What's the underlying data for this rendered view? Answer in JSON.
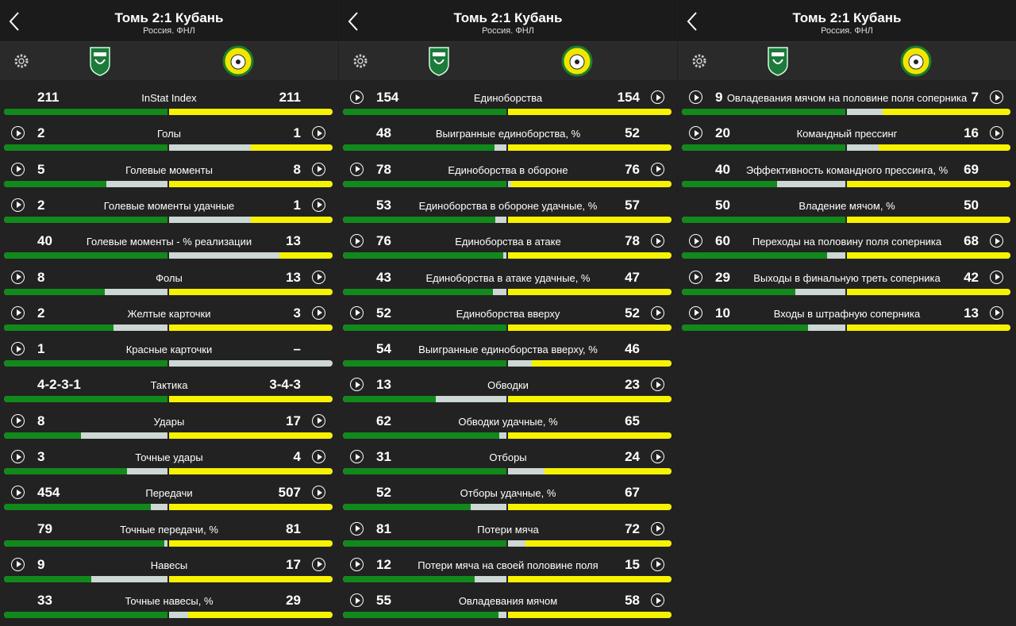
{
  "panels": [
    {
      "header": {
        "title": "Томь 2:1 Кубань",
        "subtitle": "Россия. ФНЛ"
      },
      "rows": [
        {
          "home": 211,
          "label": "InStat Index",
          "away": 211,
          "video": [
            false,
            false
          ]
        },
        {
          "home": 2,
          "label": "Голы",
          "away": 1,
          "video": [
            true,
            true
          ]
        },
        {
          "home": 5,
          "label": "Голевые моменты",
          "away": 8,
          "video": [
            true,
            true
          ]
        },
        {
          "home": 2,
          "label": "Голевые моменты удачные",
          "away": 1,
          "video": [
            true,
            true
          ]
        },
        {
          "home": 40,
          "label": "Голевые моменты - % реализации",
          "away": 13,
          "video": [
            false,
            false
          ]
        },
        {
          "home": 8,
          "label": "Фолы",
          "away": 13,
          "video": [
            true,
            true
          ]
        },
        {
          "home": 2,
          "label": "Желтые карточки",
          "away": 3,
          "video": [
            true,
            true
          ]
        },
        {
          "home": 1,
          "label": "Красные карточки",
          "away": "–",
          "video": [
            true,
            false
          ]
        },
        {
          "home": "4-2-3-1",
          "label": "Тактика",
          "away": "3-4-3",
          "video": [
            false,
            false
          ]
        },
        {
          "home": 8,
          "label": "Удары",
          "away": 17,
          "video": [
            true,
            true
          ]
        },
        {
          "home": 3,
          "label": "Точные удары",
          "away": 4,
          "video": [
            true,
            true
          ]
        },
        {
          "home": 454,
          "label": "Передачи",
          "away": 507,
          "video": [
            true,
            true
          ]
        },
        {
          "home": 79,
          "label": "Точные передачи, %",
          "away": 81,
          "video": [
            false,
            false
          ]
        },
        {
          "home": 9,
          "label": "Навесы",
          "away": 17,
          "video": [
            true,
            true
          ]
        },
        {
          "home": 33,
          "label": "Точные навесы, %",
          "away": 29,
          "video": [
            false,
            false
          ]
        }
      ]
    },
    {
      "header": {
        "title": "Томь 2:1 Кубань",
        "subtitle": "Россия. ФНЛ"
      },
      "rows": [
        {
          "home": 154,
          "label": "Единоборства",
          "away": 154,
          "video": [
            true,
            true
          ]
        },
        {
          "home": 48,
          "label": "Выигранные единоборства, %",
          "away": 52,
          "video": [
            false,
            false
          ]
        },
        {
          "home": 78,
          "label": "Единоборства в обороне",
          "away": 76,
          "video": [
            true,
            true
          ]
        },
        {
          "home": 53,
          "label": "Единоборства в обороне удачные, %",
          "away": 57,
          "video": [
            false,
            false
          ]
        },
        {
          "home": 76,
          "label": "Единоборства в атаке",
          "away": 78,
          "video": [
            true,
            true
          ]
        },
        {
          "home": 43,
          "label": "Единоборства в атаке удачные, %",
          "away": 47,
          "video": [
            false,
            false
          ]
        },
        {
          "home": 52,
          "label": "Единоборства вверху",
          "away": 52,
          "video": [
            true,
            true
          ]
        },
        {
          "home": 54,
          "label": "Выигранные единоборства вверху, %",
          "away": 46,
          "video": [
            false,
            false
          ]
        },
        {
          "home": 13,
          "label": "Обводки",
          "away": 23,
          "video": [
            true,
            true
          ]
        },
        {
          "home": 62,
          "label": "Обводки удачные, %",
          "away": 65,
          "video": [
            false,
            false
          ]
        },
        {
          "home": 31,
          "label": "Отборы",
          "away": 24,
          "video": [
            true,
            true
          ]
        },
        {
          "home": 52,
          "label": "Отборы удачные, %",
          "away": 67,
          "video": [
            false,
            false
          ]
        },
        {
          "home": 81,
          "label": "Потери мяча",
          "away": 72,
          "video": [
            true,
            true
          ]
        },
        {
          "home": 12,
          "label": "Потери мяча на своей половине поля",
          "away": 15,
          "video": [
            true,
            true
          ]
        },
        {
          "home": 55,
          "label": "Овладевания мячом",
          "away": 58,
          "video": [
            true,
            true
          ]
        }
      ]
    },
    {
      "header": {
        "title": "Томь 2:1 Кубань",
        "subtitle": "Россия. ФНЛ"
      },
      "rows": [
        {
          "home": 9,
          "label": "Овладевания мячом на половине поля соперника",
          "away": 7,
          "video": [
            true,
            true
          ]
        },
        {
          "home": 20,
          "label": "Командный прессинг",
          "away": 16,
          "video": [
            true,
            true
          ]
        },
        {
          "home": 40,
          "label": "Эффективность командного прессинга, %",
          "away": 69,
          "video": [
            false,
            false
          ]
        },
        {
          "home": 50,
          "label": "Владение мячом, %",
          "away": 50,
          "video": [
            false,
            false
          ]
        },
        {
          "home": 60,
          "label": "Переходы на половину поля соперника",
          "away": 68,
          "video": [
            true,
            true
          ]
        },
        {
          "home": 29,
          "label": "Выходы в финальную треть соперника",
          "away": 42,
          "video": [
            true,
            true
          ]
        },
        {
          "home": 10,
          "label": "Входы в штрафную соперника",
          "away": 13,
          "video": [
            true,
            true
          ]
        }
      ]
    }
  ]
}
